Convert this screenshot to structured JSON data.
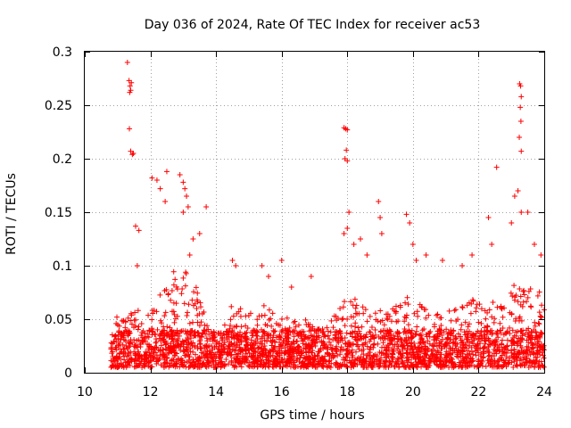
{
  "chart_data": {
    "type": "scatter",
    "title": "Day 036 of 2024, Rate Of TEC Index for receiver ac53",
    "xlabel": "GPS time / hours",
    "ylabel": "ROTI / TECUs",
    "xlim": [
      10,
      24
    ],
    "ylim": [
      0,
      0.3
    ],
    "x_ticks": [
      10,
      12,
      14,
      16,
      18,
      20,
      22,
      24
    ],
    "x_tick_labels": [
      "10",
      "12",
      "14",
      "16",
      "18",
      "20",
      "22",
      "24"
    ],
    "y_ticks": [
      0,
      0.05,
      0.1,
      0.15,
      0.2,
      0.25,
      0.3
    ],
    "y_tick_labels": [
      "0",
      "0.05",
      "0.1",
      "0.15",
      "0.2",
      "0.25",
      "0.3"
    ],
    "grid": true,
    "marker": "plus",
    "color": "#ff0000",
    "series": [
      {
        "name": "ROTI",
        "x_range": [
          10.8,
          24
        ],
        "baseline_range": [
          0.005,
          0.04
        ],
        "outliers": [
          [
            11.3,
            0.29
          ],
          [
            11.35,
            0.273
          ],
          [
            11.38,
            0.268
          ],
          [
            11.4,
            0.264
          ],
          [
            11.42,
            0.271
          ],
          [
            11.37,
            0.262
          ],
          [
            11.36,
            0.228
          ],
          [
            11.4,
            0.207
          ],
          [
            11.45,
            0.204
          ],
          [
            11.48,
            0.205
          ],
          [
            11.55,
            0.137
          ],
          [
            11.65,
            0.133
          ],
          [
            11.6,
            0.1
          ],
          [
            12.05,
            0.182
          ],
          [
            12.2,
            0.18
          ],
          [
            12.3,
            0.172
          ],
          [
            12.5,
            0.188
          ],
          [
            12.45,
            0.16
          ],
          [
            12.9,
            0.185
          ],
          [
            13.0,
            0.178
          ],
          [
            13.05,
            0.172
          ],
          [
            13.1,
            0.165
          ],
          [
            13.15,
            0.155
          ],
          [
            13.0,
            0.15
          ],
          [
            13.3,
            0.125
          ],
          [
            13.5,
            0.13
          ],
          [
            13.7,
            0.155
          ],
          [
            13.2,
            0.11
          ],
          [
            14.5,
            0.105
          ],
          [
            14.6,
            0.1
          ],
          [
            15.4,
            0.1
          ],
          [
            15.6,
            0.09
          ],
          [
            16.0,
            0.105
          ],
          [
            16.3,
            0.08
          ],
          [
            16.9,
            0.09
          ],
          [
            17.9,
            0.229
          ],
          [
            17.95,
            0.228
          ],
          [
            18.0,
            0.227
          ],
          [
            17.97,
            0.208
          ],
          [
            17.93,
            0.2
          ],
          [
            18.0,
            0.198
          ],
          [
            18.05,
            0.15
          ],
          [
            18.0,
            0.135
          ],
          [
            17.9,
            0.13
          ],
          [
            18.2,
            0.12
          ],
          [
            18.4,
            0.125
          ],
          [
            18.6,
            0.11
          ],
          [
            18.95,
            0.16
          ],
          [
            19.0,
            0.145
          ],
          [
            19.05,
            0.13
          ],
          [
            19.8,
            0.148
          ],
          [
            19.9,
            0.14
          ],
          [
            20.0,
            0.12
          ],
          [
            20.1,
            0.105
          ],
          [
            20.4,
            0.11
          ],
          [
            20.9,
            0.105
          ],
          [
            21.5,
            0.1
          ],
          [
            21.8,
            0.11
          ],
          [
            22.3,
            0.145
          ],
          [
            22.4,
            0.12
          ],
          [
            22.55,
            0.192
          ],
          [
            23.1,
            0.165
          ],
          [
            23.2,
            0.17
          ],
          [
            23.3,
            0.15
          ],
          [
            23.0,
            0.14
          ],
          [
            23.5,
            0.15
          ],
          [
            23.7,
            0.12
          ],
          [
            23.9,
            0.11
          ],
          [
            23.25,
            0.27
          ],
          [
            23.28,
            0.268
          ],
          [
            23.3,
            0.258
          ],
          [
            23.27,
            0.248
          ],
          [
            23.29,
            0.235
          ],
          [
            23.24,
            0.22
          ],
          [
            23.3,
            0.207
          ]
        ]
      }
    ],
    "density_profile": [
      [
        10.8,
        0.0
      ],
      [
        11.0,
        0.06
      ],
      [
        11.2,
        0.05
      ],
      [
        11.4,
        0.055
      ],
      [
        11.6,
        0.06
      ],
      [
        11.8,
        0.06
      ],
      [
        12.0,
        0.07
      ],
      [
        12.2,
        0.08
      ],
      [
        12.4,
        0.085
      ],
      [
        12.6,
        0.09
      ],
      [
        12.8,
        0.1
      ],
      [
        13.0,
        0.1
      ],
      [
        13.2,
        0.09
      ],
      [
        13.4,
        0.08
      ],
      [
        13.6,
        0.07
      ],
      [
        13.8,
        0.04
      ],
      [
        14.0,
        0.04
      ],
      [
        14.2,
        0.045
      ],
      [
        14.4,
        0.06
      ],
      [
        14.6,
        0.07
      ],
      [
        14.8,
        0.06
      ],
      [
        15.0,
        0.055
      ],
      [
        15.2,
        0.06
      ],
      [
        15.4,
        0.065
      ],
      [
        15.6,
        0.06
      ],
      [
        15.8,
        0.055
      ],
      [
        16.0,
        0.06
      ],
      [
        16.2,
        0.05
      ],
      [
        16.4,
        0.055
      ],
      [
        16.6,
        0.05
      ],
      [
        16.8,
        0.05
      ],
      [
        17.0,
        0.045
      ],
      [
        17.2,
        0.04
      ],
      [
        17.4,
        0.05
      ],
      [
        17.6,
        0.055
      ],
      [
        17.8,
        0.07
      ],
      [
        18.0,
        0.08
      ],
      [
        18.2,
        0.07
      ],
      [
        18.4,
        0.065
      ],
      [
        18.6,
        0.06
      ],
      [
        18.8,
        0.055
      ],
      [
        19.0,
        0.06
      ],
      [
        19.2,
        0.06
      ],
      [
        19.4,
        0.065
      ],
      [
        19.6,
        0.07
      ],
      [
        19.8,
        0.075
      ],
      [
        20.0,
        0.07
      ],
      [
        20.2,
        0.065
      ],
      [
        20.4,
        0.06
      ],
      [
        20.6,
        0.06
      ],
      [
        20.8,
        0.055
      ],
      [
        21.0,
        0.06
      ],
      [
        21.2,
        0.065
      ],
      [
        21.4,
        0.06
      ],
      [
        21.6,
        0.065
      ],
      [
        21.8,
        0.07
      ],
      [
        22.0,
        0.065
      ],
      [
        22.2,
        0.06
      ],
      [
        22.4,
        0.07
      ],
      [
        22.6,
        0.06
      ],
      [
        22.8,
        0.07
      ],
      [
        23.0,
        0.08
      ],
      [
        23.2,
        0.085
      ],
      [
        23.4,
        0.08
      ],
      [
        23.6,
        0.08
      ],
      [
        23.8,
        0.08
      ],
      [
        24.0,
        0.07
      ]
    ]
  }
}
